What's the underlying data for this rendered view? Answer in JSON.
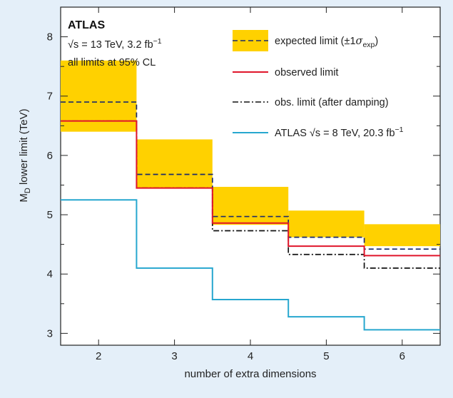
{
  "chart_data": {
    "type": "line",
    "title": "",
    "xlabel": "number of extra dimensions",
    "ylabel": "M_D lower limit (TeV)",
    "xlim": [
      1.5,
      6.5
    ],
    "ylim": [
      2.8,
      8.5
    ],
    "xticks": [
      2,
      3,
      4,
      5,
      6
    ],
    "yticks": [
      3,
      4,
      5,
      6,
      7,
      8
    ],
    "grid": false,
    "legend_position": "top-right",
    "x": [
      2,
      3,
      4,
      5,
      6
    ],
    "band": {
      "name": "expected limit (±1σexp)",
      "lower": [
        6.4,
        5.45,
        4.83,
        4.62,
        4.47
      ],
      "upper": [
        7.6,
        6.27,
        5.47,
        5.07,
        4.84
      ],
      "color": "#ffd100"
    },
    "series": [
      {
        "name": "expected limit (±1σexp)",
        "values": [
          6.9,
          5.68,
          4.97,
          4.62,
          4.42
        ],
        "color": "#1a2a6c",
        "dash": "dashed"
      },
      {
        "name": "observed limit",
        "values": [
          6.58,
          5.45,
          4.86,
          4.47,
          4.31
        ],
        "color": "#e0162b",
        "dash": "solid"
      },
      {
        "name": "obs. limit (after damping)",
        "values": [
          6.58,
          5.45,
          4.73,
          4.33,
          4.1
        ],
        "color": "#111111",
        "dash": "dashdot"
      },
      {
        "name": "ATLAS √s = 8 TeV, 20.3 fb⁻¹",
        "values": [
          5.25,
          4.1,
          3.57,
          3.28,
          3.06
        ],
        "color": "#27a7cf",
        "dash": "solid"
      }
    ],
    "legend": {
      "expected": {
        "pre": "expected limit (±1",
        "sigma": "σ",
        "sub": "exp",
        "post": ")"
      },
      "observed": "observed limit",
      "damping": "obs. limit (after damping)",
      "atlas8": {
        "pre": "ATLAS ",
        "root": "√s",
        "post": " = 8 TeV, 20.3 fb",
        "sup": "−1"
      }
    },
    "annotations": {
      "experiment": "ATLAS",
      "energy": {
        "root": "√s",
        "post": " = 13 TeV, 3.2 fb",
        "sup": "−1"
      },
      "cl_note": "all limits at 95% CL"
    },
    "ylabel_parts": {
      "pre": "M",
      "sub": "D",
      "post": " lower limit (TeV)"
    }
  }
}
